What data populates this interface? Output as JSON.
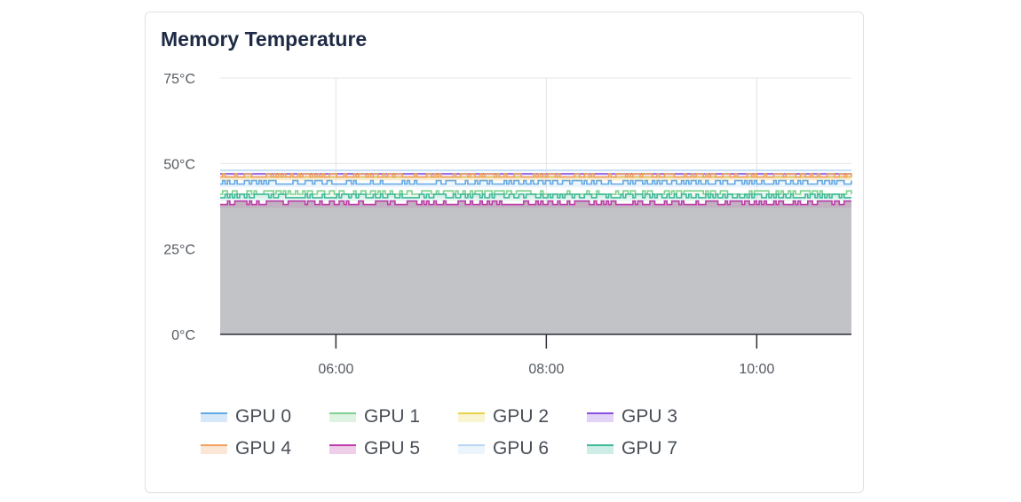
{
  "card": {
    "title": "Memory Temperature"
  },
  "chart_data": {
    "type": "line",
    "title": "Memory Temperature",
    "xlabel": "",
    "ylabel": "",
    "x_ticks": [
      "06:00",
      "08:00",
      "10:00"
    ],
    "x_tick_hours": [
      6,
      8,
      10
    ],
    "x_range_hours": [
      4.9,
      10.9
    ],
    "y_ticks": [
      "0°C",
      "25°C",
      "50°C",
      "75°C"
    ],
    "y_tick_values": [
      0,
      25,
      50,
      75
    ],
    "ylim": [
      0,
      75
    ],
    "grid": true,
    "legend_position": "bottom",
    "series": [
      {
        "name": "GPU 0",
        "color": "#5fa8e8",
        "low": 44,
        "high": 45
      },
      {
        "name": "GPU 1",
        "color": "#7fd08f",
        "low": 41,
        "high": 42
      },
      {
        "name": "GPU 2",
        "color": "#e6d34a",
        "low": 46,
        "high": 46
      },
      {
        "name": "GPU 3",
        "color": "#8a4fe0",
        "low": 47,
        "high": 47
      },
      {
        "name": "GPU 4",
        "color": "#f0a05a",
        "low": 46,
        "high": 47
      },
      {
        "name": "GPU 5",
        "color": "#c03aa8",
        "low": 38,
        "high": 39
      },
      {
        "name": "GPU 6",
        "color": "#b9d7f5",
        "low": 48,
        "high": 48
      },
      {
        "name": "GPU 7",
        "color": "#3cb89a",
        "low": 40,
        "high": 41
      }
    ]
  },
  "legend": {
    "items": [
      "GPU 0",
      "GPU 1",
      "GPU 2",
      "GPU 3",
      "GPU 4",
      "GPU 5",
      "GPU 6",
      "GPU 7"
    ]
  }
}
